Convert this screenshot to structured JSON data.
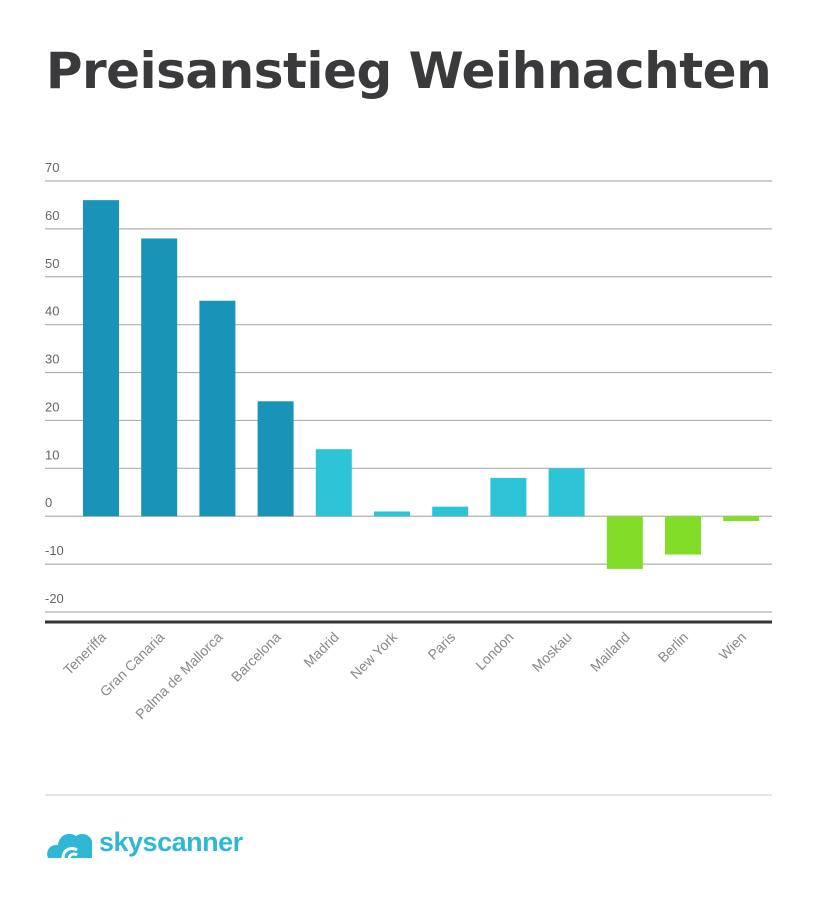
{
  "chart_data": {
    "type": "bar",
    "title": "Preisanstieg Weihnachten",
    "xlabel": "",
    "ylabel": "",
    "ylim": [
      -20,
      70
    ],
    "yticks": [
      70,
      60,
      50,
      40,
      30,
      20,
      10,
      0,
      -10,
      -20
    ],
    "grid": true,
    "categories": [
      "Teneriffa",
      "Gran Canaria",
      "Palma de Mallorca",
      "Barcelona",
      "Madrid",
      "New York",
      "Paris",
      "London",
      "Moskau",
      "Mailand",
      "Berlin",
      "Wien"
    ],
    "values": [
      66,
      58,
      45,
      24,
      14,
      1,
      2,
      8,
      10,
      -11,
      -8,
      -1
    ],
    "bar_colors": [
      "#1a93b8",
      "#1a93b8",
      "#1a93b8",
      "#1a93b8",
      "#2ec4d8",
      "#2ec4d8",
      "#2ec4d8",
      "#2ec4d8",
      "#2ec4d8",
      "#82dd28",
      "#82dd28",
      "#82dd28"
    ]
  },
  "brand": {
    "name": "skyscanner",
    "color": "#2fb8d4"
  }
}
